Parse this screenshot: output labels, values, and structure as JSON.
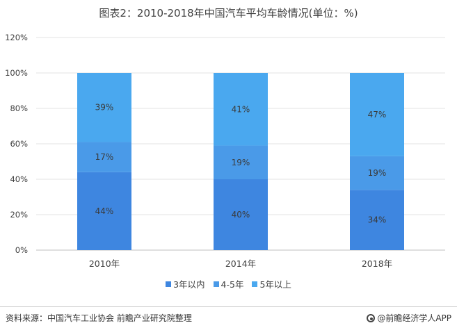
{
  "chart_data": {
    "type": "bar",
    "stacked": true,
    "title": "图表2：2010-2018年中国汽车平均车龄情况(单位：%)",
    "categories": [
      "2010年",
      "2014年",
      "2018年"
    ],
    "series": [
      {
        "name": "3年以内",
        "values": [
          44,
          40,
          34
        ],
        "labels": [
          "44%",
          "40%",
          "34%"
        ],
        "color": "#3e86e0"
      },
      {
        "name": "4-5年",
        "values": [
          17,
          19,
          19
        ],
        "labels": [
          "17%",
          "19%",
          "19%"
        ],
        "color": "#4a9ae8"
      },
      {
        "name": "5年以上",
        "values": [
          39,
          41,
          47
        ],
        "labels": [
          "39%",
          "41%",
          "47%"
        ],
        "color": "#4aa8ef"
      }
    ],
    "ylim": [
      0,
      120
    ],
    "yticks": [
      0,
      20,
      40,
      60,
      80,
      100,
      120
    ],
    "ytick_labels": [
      "0%",
      "20%",
      "40%",
      "60%",
      "80%",
      "100%",
      "120%"
    ],
    "grid": true,
    "legend_position": "bottom"
  },
  "footer": {
    "source": "资料来源：中国汽车工业协会 前瞻产业研究院整理",
    "brand": "@前瞻经济学人APP"
  }
}
